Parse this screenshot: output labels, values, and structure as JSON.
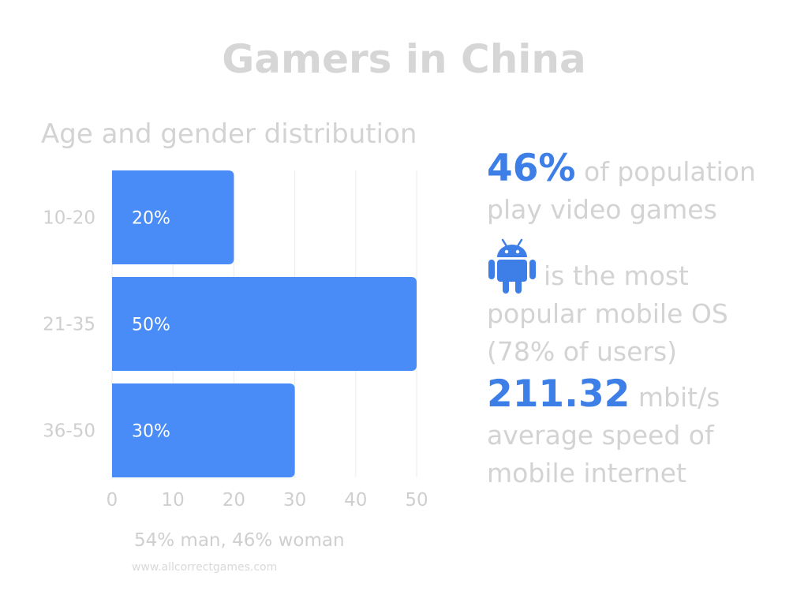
{
  "title": "Gamers in China",
  "subtitle": "Age and gender distribution",
  "chart_data": {
    "type": "bar",
    "orientation": "horizontal",
    "categories": [
      "10-20",
      "21-35",
      "36-50"
    ],
    "values": [
      20,
      50,
      30
    ],
    "data_labels": [
      "20%",
      "50%",
      "30%"
    ],
    "xticks": [
      "0",
      "10",
      "20",
      "30",
      "40",
      "50"
    ],
    "xlim": [
      0,
      50
    ],
    "grid": true,
    "bar_color": "#4a8cf7"
  },
  "caption": "54% man, 46% woman",
  "website": "www.allcorrectgames.com",
  "stats": {
    "population_pct": "46%",
    "population_text_1": "of population",
    "population_text_2": "play video games",
    "android_icon": "android-icon",
    "os_text_1": "is the most",
    "os_text_2": "popular mobile OS",
    "os_text_3": "(78% of users)",
    "speed_value": "211.32",
    "speed_unit": "mbit/s",
    "speed_text_1": "average speed of",
    "speed_text_2": "mobile internet"
  },
  "colors": {
    "accent": "#3d7fe6",
    "bar": "#4a8cf7",
    "text_gray": "#d3d3d3"
  }
}
